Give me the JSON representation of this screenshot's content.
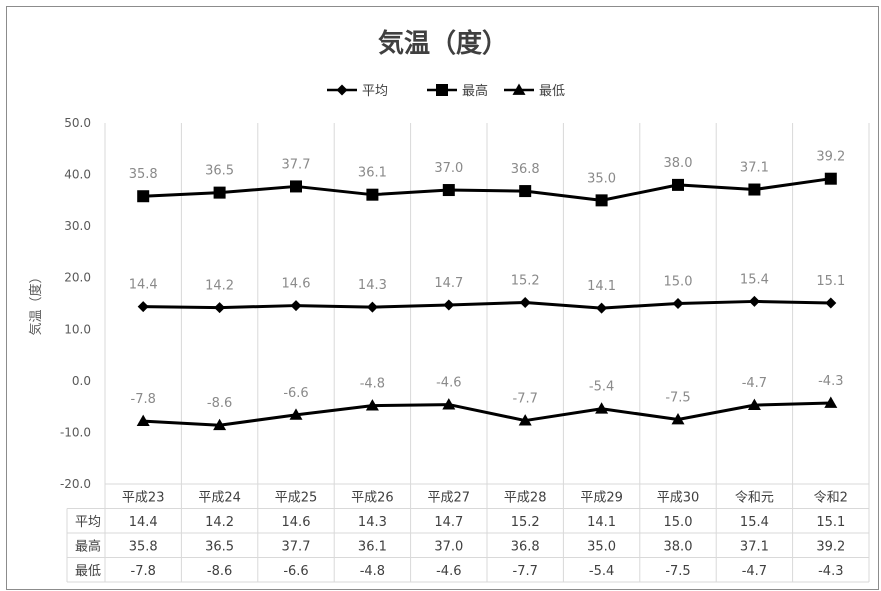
{
  "chart_data": {
    "type": "line",
    "title": "気温（度）",
    "ylabel": "気温（度）",
    "xlabel": "",
    "categories": [
      "平成23",
      "平成24",
      "平成25",
      "平成26",
      "平成27",
      "平成28",
      "平成29",
      "平成30",
      "令和元",
      "令和2"
    ],
    "ylim": [
      -20,
      50
    ],
    "yticks": [
      "50.0",
      "40.0",
      "30.0",
      "20.0",
      "10.0",
      "0.0",
      "-10.0",
      "-20.0"
    ],
    "grid": "vertical",
    "legend_position": "top",
    "series": [
      {
        "name": "平均",
        "marker": "diamond",
        "color": "#000000",
        "values": [
          14.4,
          14.2,
          14.6,
          14.3,
          14.7,
          15.2,
          14.1,
          15.0,
          15.4,
          15.1
        ],
        "labels": [
          "14.4",
          "14.2",
          "14.6",
          "14.3",
          "14.7",
          "15.2",
          "14.1",
          "15.0",
          "15.4",
          "15.1"
        ]
      },
      {
        "name": "最高",
        "marker": "square",
        "color": "#000000",
        "values": [
          35.8,
          36.5,
          37.7,
          36.1,
          37.0,
          36.8,
          35.0,
          38.0,
          37.1,
          39.2
        ],
        "labels": [
          "35.8",
          "36.5",
          "37.7",
          "36.1",
          "37.0",
          "36.8",
          "35.0",
          "38.0",
          "37.1",
          "39.2"
        ]
      },
      {
        "name": "最低",
        "marker": "triangle",
        "color": "#000000",
        "values": [
          -7.8,
          -8.6,
          -6.6,
          -4.8,
          -4.6,
          -7.7,
          -5.4,
          -7.5,
          -4.7,
          -4.3
        ],
        "labels": [
          "-7.8",
          "-8.6",
          "-6.6",
          "-4.8",
          "-4.6",
          "-7.7",
          "-5.4",
          "-7.5",
          "-4.7",
          "-4.3"
        ]
      }
    ],
    "data_table": true
  }
}
